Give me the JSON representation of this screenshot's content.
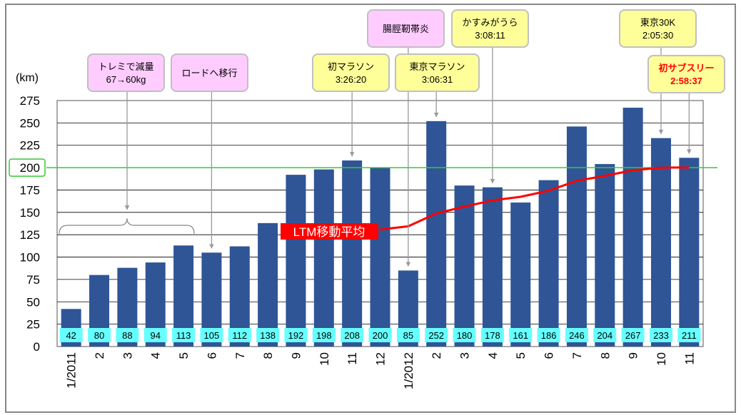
{
  "chart_data": {
    "type": "bar",
    "title": "",
    "ylabel": "(km)",
    "xlabel": "",
    "ylim": [
      0,
      275
    ],
    "yticks": [
      0,
      25,
      50,
      75,
      100,
      125,
      150,
      175,
      200,
      225,
      250,
      275
    ],
    "highlight_tick": 200,
    "categories": [
      "1/2011",
      "2",
      "3",
      "4",
      "5",
      "6",
      "7",
      "8",
      "9",
      "10",
      "11",
      "12",
      "1/2012",
      "2",
      "3",
      "4",
      "5",
      "6",
      "7",
      "8",
      "9",
      "10",
      "11"
    ],
    "values": [
      42,
      80,
      88,
      94,
      113,
      105,
      112,
      138,
      192,
      198,
      208,
      200,
      85,
      252,
      180,
      178,
      161,
      186,
      246,
      204,
      267,
      233,
      211
    ],
    "bar_color": "#2F5597",
    "label_box_color": "#66FFFF",
    "target_line": {
      "value": 200,
      "color": "#33CC33"
    },
    "moving_average": {
      "name": "LTM移動平均",
      "color": "#FF0000",
      "start_index": 11,
      "values": [
        130.8,
        134.4,
        148.8,
        156.4,
        163.4,
        167.4,
        174.2,
        185.3,
        190.8,
        197.1,
        200.0,
        200.3
      ]
    },
    "annotations": [
      {
        "lines": [
          "トレミで減量",
          "67→60kg"
        ],
        "kind": "event",
        "target": "2011 months 1-5"
      },
      {
        "lines": [
          "ロードへ移行"
        ],
        "kind": "event",
        "target_index": 5
      },
      {
        "lines": [
          "初マラソン",
          "3:26:20"
        ],
        "kind": "race",
        "target_index": 10
      },
      {
        "lines": [
          "腸脛靭帯炎"
        ],
        "kind": "event",
        "target_index": 12
      },
      {
        "lines": [
          "東京マラソン",
          "3:06:31"
        ],
        "kind": "race",
        "target_index": 13
      },
      {
        "lines": [
          "かすみがうら",
          "3:08:11"
        ],
        "kind": "race",
        "target_index": 15
      },
      {
        "lines": [
          "東京30K",
          "2:05:30"
        ],
        "kind": "race",
        "target_index": 21
      },
      {
        "lines": [
          "初サブスリー",
          "2:58:37"
        ],
        "kind": "race-highlight",
        "target_index": 22
      }
    ],
    "colors": {
      "event_box": "#FFCCFF",
      "race_box": "#FFFF99",
      "highlight_text": "#FF0000"
    }
  }
}
